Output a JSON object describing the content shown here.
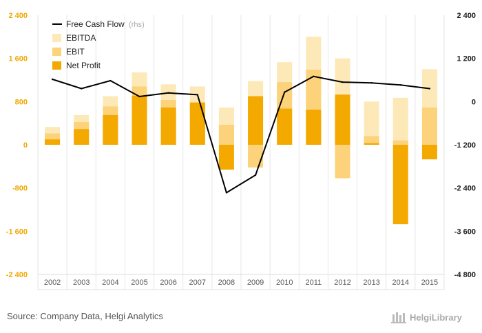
{
  "chart_data": {
    "type": "bar",
    "categories": [
      "2002",
      "2003",
      "2004",
      "2005",
      "2006",
      "2007",
      "2008",
      "2009",
      "2010",
      "2011",
      "2012",
      "2013",
      "2014",
      "2015"
    ],
    "series": [
      {
        "name": "EBITDA",
        "kind": "bar",
        "axis": "left",
        "color": "#fde9b8",
        "values": [
          330,
          550,
          900,
          1340,
          1120,
          1080,
          690,
          1180,
          1530,
          2000,
          1600,
          800,
          870,
          1400
        ]
      },
      {
        "name": "EBIT",
        "kind": "bar",
        "axis": "left",
        "color": "#fcd27a",
        "values": [
          210,
          420,
          710,
          1080,
          830,
          790,
          370,
          -420,
          1160,
          1390,
          -620,
          160,
          80,
          690
        ]
      },
      {
        "name": "Net Profit",
        "kind": "bar",
        "axis": "left",
        "color": "#f4a900",
        "values": [
          100,
          290,
          550,
          910,
          690,
          780,
          -460,
          900,
          670,
          650,
          930,
          30,
          -1470,
          -270
        ]
      },
      {
        "name": "Free Cash Flow",
        "note": "(rhs)",
        "kind": "line",
        "axis": "right",
        "color": "#000000",
        "values": [
          620,
          360,
          580,
          140,
          240,
          190,
          -2530,
          -2040,
          260,
          700,
          540,
          520,
          460,
          360
        ]
      }
    ],
    "y_left": {
      "min": -2400,
      "max": 2400,
      "ticks": [
        -2400,
        -1600,
        -800,
        0,
        800,
        1600,
        2400
      ],
      "tick_labels": [
        "-2 400",
        "-1 600",
        "-800",
        "0",
        "800",
        "1 600",
        "2 400"
      ]
    },
    "y_right": {
      "min": -4800,
      "max": 2400,
      "ticks": [
        -4800,
        -3600,
        -2400,
        -1200,
        0,
        1200,
        2400
      ],
      "tick_labels": [
        "-4 800",
        "-3 600",
        "-2 400",
        "-1 200",
        "0",
        "1 200",
        "2 400"
      ]
    },
    "legend_position": "top-left",
    "grid": "vertical-x",
    "source": "Source: Company Data, Helgi Analytics",
    "brand": "HelgiLibrary"
  }
}
